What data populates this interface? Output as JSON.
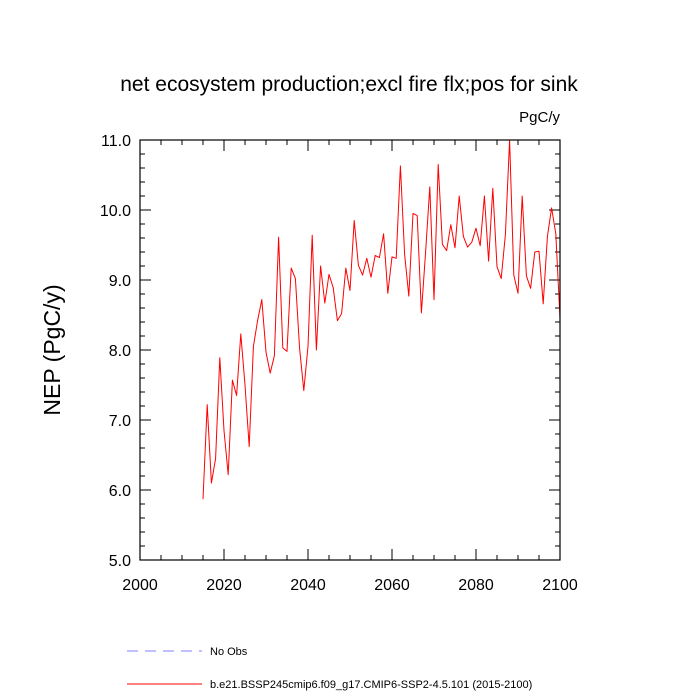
{
  "chart_data": {
    "type": "line",
    "title": "net ecosystem production;excl fire flx;pos for sink",
    "units_label": "PgC/y",
    "ylabel": "NEP  (PgC/y)",
    "xlabel": "",
    "xlim": [
      2000,
      2100
    ],
    "ylim": [
      5.0,
      11.0
    ],
    "x_ticks": [
      2000,
      2020,
      2040,
      2060,
      2080,
      2100
    ],
    "x_tick_labels": [
      "2000",
      "2020",
      "2040",
      "2060",
      "2080",
      "2100"
    ],
    "y_ticks": [
      5.0,
      6.0,
      7.0,
      8.0,
      9.0,
      10.0,
      11.0
    ],
    "y_tick_labels": [
      "5.0",
      "6.0",
      "7.0",
      "8.0",
      "9.0",
      "10.0",
      "11.0"
    ],
    "x": [
      2015,
      2016,
      2017,
      2018,
      2019,
      2020,
      2021,
      2022,
      2023,
      2024,
      2025,
      2026,
      2027,
      2028,
      2029,
      2030,
      2031,
      2032,
      2033,
      2034,
      2035,
      2036,
      2037,
      2038,
      2039,
      2040,
      2041,
      2042,
      2043,
      2044,
      2045,
      2046,
      2047,
      2048,
      2049,
      2050,
      2051,
      2052,
      2053,
      2054,
      2055,
      2056,
      2057,
      2058,
      2059,
      2060,
      2061,
      2062,
      2063,
      2064,
      2065,
      2066,
      2067,
      2068,
      2069,
      2070,
      2071,
      2072,
      2073,
      2074,
      2075,
      2076,
      2077,
      2078,
      2079,
      2080,
      2081,
      2082,
      2083,
      2084,
      2085,
      2086,
      2087,
      2088,
      2089,
      2090,
      2091,
      2092,
      2093,
      2094,
      2095,
      2096,
      2097,
      2098,
      2099,
      2100
    ],
    "series": [
      {
        "name": "b.e21.BSSP245cmip6.f09_g17.CMIP6-SSP2-4.5.101 (2015-2100)",
        "color": "#ff0000",
        "dash": "solid",
        "values": [
          5.87,
          7.22,
          6.1,
          6.45,
          7.89,
          6.85,
          6.22,
          7.57,
          7.35,
          8.23,
          7.5,
          6.62,
          8.05,
          8.42,
          8.72,
          7.97,
          7.67,
          7.92,
          9.61,
          8.03,
          7.98,
          9.17,
          9.02,
          8.02,
          7.42,
          8.05,
          9.64,
          8.0,
          9.2,
          8.67,
          9.08,
          8.89,
          8.42,
          8.52,
          9.17,
          8.85,
          9.85,
          9.21,
          9.07,
          9.31,
          9.04,
          9.35,
          9.32,
          9.66,
          8.81,
          9.33,
          9.31,
          10.63,
          9.37,
          8.77,
          9.95,
          9.92,
          8.53,
          9.4,
          10.33,
          8.72,
          10.65,
          9.51,
          9.42,
          9.79,
          9.46,
          10.2,
          9.62,
          9.47,
          9.54,
          9.74,
          9.49,
          10.2,
          9.27,
          10.31,
          9.19,
          9.02,
          9.65,
          11.0,
          9.07,
          8.81,
          10.2,
          9.06,
          8.88,
          9.4,
          9.41,
          8.66,
          9.62,
          10.03,
          9.66,
          8.45
        ]
      }
    ],
    "legend": [
      {
        "label": "No Obs",
        "color": "#8080ff",
        "dash": "dashed"
      },
      {
        "label": "b.e21.BSSP245cmip6.f09_g17.CMIP6-SSP2-4.5.101 (2015-2100)",
        "color": "#ff0000",
        "dash": "solid"
      }
    ]
  }
}
